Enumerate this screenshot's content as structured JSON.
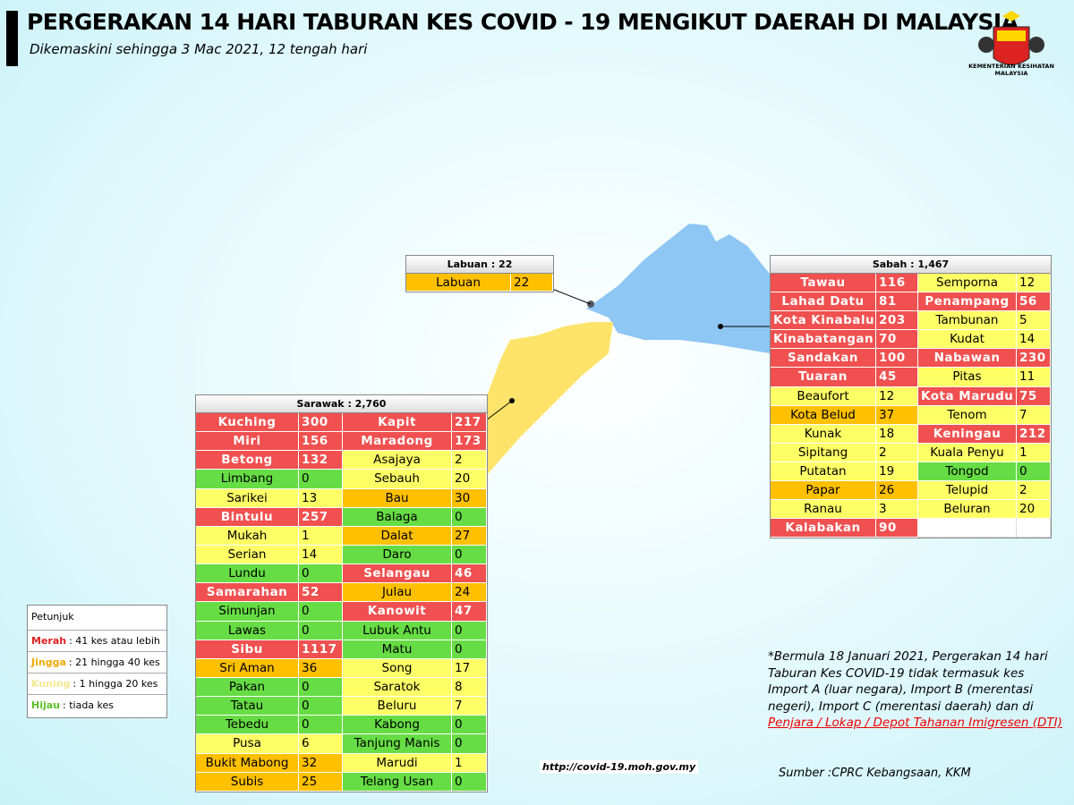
{
  "header": {
    "title": "PERGERAKAN 14 HARI TABURAN KES COVID - 19 MENGIKUT DAERAH DI MALAYSIA",
    "subtitle": "Dikemaskini sehingga 3 Mac 2021, 12 tengah hari",
    "logo_text": "KEMENTERIAN KESIHATAN MALAYSIA"
  },
  "labuan": {
    "title": "Labuan : 22",
    "rows": [
      [
        {
          "name": "Labuan",
          "cases": 22,
          "color": "#ffc000"
        }
      ]
    ]
  },
  "sabah": {
    "title": "Sabah : 1,467",
    "rows": [
      [
        {
          "name": "Tawau",
          "cases": 116,
          "color": "#f05050"
        },
        {
          "name": "Semporna",
          "cases": 12,
          "color": "#ffff66"
        }
      ],
      [
        {
          "name": "Lahad Datu",
          "cases": 81,
          "color": "#f05050"
        },
        {
          "name": "Penampang",
          "cases": 56,
          "color": "#f05050"
        }
      ],
      [
        {
          "name": "Kota Kinabalu",
          "cases": 203,
          "color": "#f05050"
        },
        {
          "name": "Tambunan",
          "cases": 5,
          "color": "#ffff66"
        }
      ],
      [
        {
          "name": "Kinabatangan",
          "cases": 70,
          "color": "#f05050"
        },
        {
          "name": "Kudat",
          "cases": 14,
          "color": "#ffff66"
        }
      ],
      [
        {
          "name": "Sandakan",
          "cases": 100,
          "color": "#f05050"
        },
        {
          "name": "Nabawan",
          "cases": 230,
          "color": "#f05050"
        }
      ],
      [
        {
          "name": "Tuaran",
          "cases": 45,
          "color": "#f05050"
        },
        {
          "name": "Pitas",
          "cases": 11,
          "color": "#ffff66"
        }
      ],
      [
        {
          "name": "Beaufort",
          "cases": 12,
          "color": "#ffff66"
        },
        {
          "name": "Kota Marudu",
          "cases": 75,
          "color": "#f05050"
        }
      ],
      [
        {
          "name": "Kota Belud",
          "cases": 37,
          "color": "#ffc000"
        },
        {
          "name": "Tenom",
          "cases": 7,
          "color": "#ffff66"
        }
      ],
      [
        {
          "name": "Kunak",
          "cases": 18,
          "color": "#ffff66"
        },
        {
          "name": "Keningau",
          "cases": 212,
          "color": "#f05050"
        }
      ],
      [
        {
          "name": "Sipitang",
          "cases": 2,
          "color": "#ffff66"
        },
        {
          "name": "Kuala Penyu",
          "cases": 1,
          "color": "#ffff66"
        }
      ],
      [
        {
          "name": "Putatan",
          "cases": 19,
          "color": "#ffff66"
        },
        {
          "name": "Tongod",
          "cases": 0,
          "color": "#66dd44"
        }
      ],
      [
        {
          "name": "Papar",
          "cases": 26,
          "color": "#ffc000"
        },
        {
          "name": "Telupid",
          "cases": 2,
          "color": "#ffff66"
        }
      ],
      [
        {
          "name": "Ranau",
          "cases": 3,
          "color": "#ffff66"
        },
        {
          "name": "Beluran",
          "cases": 20,
          "color": "#ffff66"
        }
      ],
      [
        {
          "name": "Kalabakan",
          "cases": 90,
          "color": "#f05050"
        }
      ]
    ]
  },
  "sarawak": {
    "title": "Sarawak : 2,760",
    "rows": [
      [
        {
          "name": "Kuching",
          "cases": 300,
          "color": "#f05050"
        },
        {
          "name": "Kapit",
          "cases": 217,
          "color": "#f05050"
        }
      ],
      [
        {
          "name": "Miri",
          "cases": 156,
          "color": "#f05050"
        },
        {
          "name": "Maradong",
          "cases": 173,
          "color": "#f05050"
        }
      ],
      [
        {
          "name": "Betong",
          "cases": 132,
          "color": "#f05050"
        },
        {
          "name": "Asajaya",
          "cases": 2,
          "color": "#ffff66"
        }
      ],
      [
        {
          "name": "Limbang",
          "cases": 0,
          "color": "#66dd44"
        },
        {
          "name": "Sebauh",
          "cases": 20,
          "color": "#ffff66"
        }
      ],
      [
        {
          "name": "Sarikei",
          "cases": 13,
          "color": "#ffff66"
        },
        {
          "name": "Bau",
          "cases": 30,
          "color": "#ffc000"
        }
      ],
      [
        {
          "name": "Bintulu",
          "cases": 257,
          "color": "#f05050"
        },
        {
          "name": "Balaga",
          "cases": 0,
          "color": "#66dd44"
        }
      ],
      [
        {
          "name": "Mukah",
          "cases": 1,
          "color": "#ffff66"
        },
        {
          "name": "Dalat",
          "cases": 27,
          "color": "#ffc000"
        }
      ],
      [
        {
          "name": "Serian",
          "cases": 14,
          "color": "#ffff66"
        },
        {
          "name": "Daro",
          "cases": 0,
          "color": "#66dd44"
        }
      ],
      [
        {
          "name": "Lundu",
          "cases": 0,
          "color": "#66dd44"
        },
        {
          "name": "Selangau",
          "cases": 46,
          "color": "#f05050"
        }
      ],
      [
        {
          "name": "Samarahan",
          "cases": 52,
          "color": "#f05050"
        },
        {
          "name": "Julau",
          "cases": 24,
          "color": "#ffc000"
        }
      ],
      [
        {
          "name": "Simunjan",
          "cases": 0,
          "color": "#66dd44"
        },
        {
          "name": "Kanowit",
          "cases": 47,
          "color": "#f05050"
        }
      ],
      [
        {
          "name": "Lawas",
          "cases": 0,
          "color": "#66dd44"
        },
        {
          "name": "Lubuk Antu",
          "cases": 0,
          "color": "#66dd44"
        }
      ],
      [
        {
          "name": "Sibu",
          "cases": 1117,
          "color": "#f05050"
        },
        {
          "name": "Matu",
          "cases": 0,
          "color": "#66dd44"
        }
      ],
      [
        {
          "name": "Sri Aman",
          "cases": 36,
          "color": "#ffc000"
        },
        {
          "name": "Song",
          "cases": 17,
          "color": "#ffff66"
        }
      ],
      [
        {
          "name": "Pakan",
          "cases": 0,
          "color": "#66dd44"
        },
        {
          "name": "Saratok",
          "cases": 8,
          "color": "#ffff66"
        }
      ],
      [
        {
          "name": "Tatau",
          "cases": 0,
          "color": "#66dd44"
        },
        {
          "name": "Beluru",
          "cases": 7,
          "color": "#ffff66"
        }
      ],
      [
        {
          "name": "Tebedu",
          "cases": 0,
          "color": "#66dd44"
        },
        {
          "name": "Kabong",
          "cases": 0,
          "color": "#66dd44"
        }
      ],
      [
        {
          "name": "Pusa",
          "cases": 6,
          "color": "#ffff66"
        },
        {
          "name": "Tanjung Manis",
          "cases": 0,
          "color": "#66dd44"
        }
      ],
      [
        {
          "name": "Bukit Mabong",
          "cases": 32,
          "color": "#ffc000"
        },
        {
          "name": "Marudi",
          "cases": 1,
          "color": "#ffff66"
        }
      ],
      [
        {
          "name": "Subis",
          "cases": 25,
          "color": "#ffc000"
        },
        {
          "name": "Telang Usan",
          "cases": 0,
          "color": "#66dd44"
        }
      ]
    ]
  },
  "legend": {
    "title": "Petunjuk",
    "items": [
      {
        "label": "Merah",
        "text": ": 41 kes atau lebih",
        "color": "#e02020"
      },
      {
        "label": "Jingga",
        "text": ": 21 hingga 40 kes",
        "color": "#f0a800"
      },
      {
        "label": "Kuning",
        "text": ": 1 hingga 20 kes",
        "color": "#f4e890"
      },
      {
        "label": "Hijau",
        "text": ": tiada kes",
        "color": "#5cbf2a"
      }
    ]
  },
  "note": {
    "text": "*Bermula 18 Januari 2021, Pergerakan 14 hari Taburan Kes COVID-19 tidak termasuk kes Import A (luar negara), Import B (merentasi negeri), Import C (merentasi daerah) dan di",
    "link": "Penjara / Lokap / Depot Tahanan Imigresen (DTI)"
  },
  "url": "http://covid-19.moh.gov.my",
  "source": "Sumber :CPRC Kebangsaan,  KKM"
}
